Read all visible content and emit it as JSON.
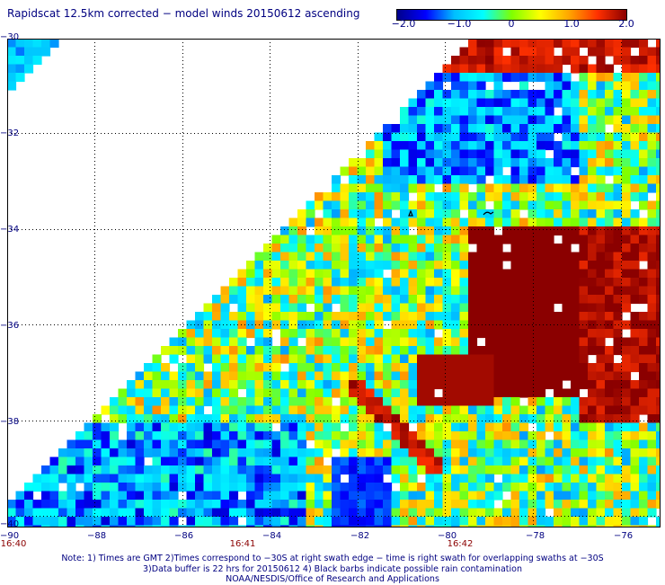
{
  "title": "Rapidscat 12.5km corrected − model winds 20150612 ascending",
  "colorbar": {
    "ticks": [
      "−2.0",
      "−1.0",
      "0",
      "1.0",
      "2.0"
    ],
    "range": [
      -2.0,
      2.0
    ],
    "colors": [
      "#00008b",
      "#0000ff",
      "#00bfff",
      "#00ffff",
      "#7fff00",
      "#ffff00",
      "#ffa500",
      "#ff3000",
      "#8b0000"
    ]
  },
  "axes": {
    "x_ticks": [
      "−90",
      "−88",
      "−86",
      "−84",
      "−82",
      "−80",
      "−78",
      "−76"
    ],
    "y_ticks": [
      "−30",
      "−32",
      "−34",
      "−36",
      "−38",
      "−40"
    ],
    "lon_range": [
      -90,
      -75.5
    ],
    "lat_range": [
      -30,
      -40
    ]
  },
  "times": [
    "16:40",
    "16:41",
    "16:42"
  ],
  "note": [
    "Note: 1) Times are GMT 2)Times correspond to −30S at right swath edge − time is right swath for overlapping swaths at −30S",
    "3)Data buffer is 22 hrs for 20150612 4) Black barbs indicate possible rain contamination",
    "NOAA/NESDIS/Office of Research and Applications"
  ]
}
